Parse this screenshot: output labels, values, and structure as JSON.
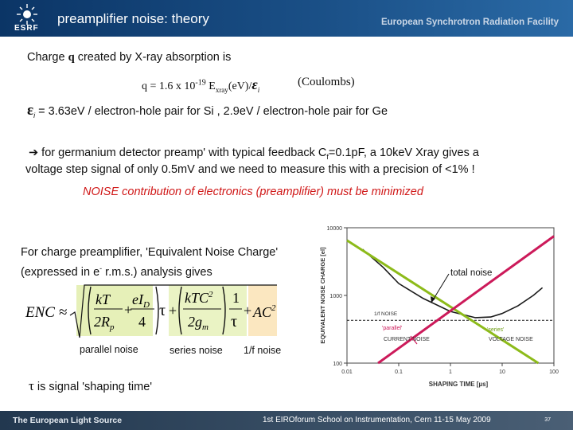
{
  "header": {
    "title": "preamplifier noise:  theory",
    "org": "European Synchrotron Radiation Facility",
    "logo_text": "ESRF"
  },
  "body": {
    "line1_pre": "Charge ",
    "line1_q": "q",
    "line1_post": " created by X-ray absorption is",
    "formula_a": "q = 1.6 x 10",
    "formula_exp": "-19",
    "formula_b": " E",
    "formula_sub": "xray",
    "formula_c": "(eV)/",
    "eps_symbol": "ε",
    "eps_sub": "i",
    "coulombs": "(Coulombs)",
    "epsline_rest": " = 3.63eV / electron-hole pair for Si ,  2.9eV / electron-hole pair for Ge",
    "para1_a": " for germanium detector preamp' with typical feedback C",
    "para1_sub": "f",
    "para1_b": "=0.1pF, a 10keV Xray gives a",
    "para2": "voltage step signal of only 0.5mV and we need to measure this with a precision of <1%  !",
    "noise_line": "NOISE contribution of electronics (preamplifier) must be minimized",
    "enc1": "For charge preamplifier, 'Equivalent Noise Charge'",
    "enc2_a": "(expressed in e",
    "enc2_sup": "-",
    "enc2_b": " r.m.s.) analysis gives",
    "lbl_parallel": "parallel noise",
    "lbl_series": "series noise",
    "lbl_1f": "1/f noise",
    "tau_symbol": "τ",
    "tau_text": " is signal 'shaping time'"
  },
  "equation": {
    "enc": "ENC ≈",
    "kT": "kT",
    "eID": "eI",
    "D": "D",
    "twoRp": "2R",
    "p": "p",
    "four": "4",
    "tau": "τ",
    "kTC": "kTC",
    "sq": "2",
    "twogm": "2g",
    "m": "m",
    "one": "1",
    "AC": "AC",
    "plus": "+"
  },
  "chart_data": {
    "type": "line",
    "xlabel": "SHAPING TIME [µs]",
    "ylabel": "EQUIVALENT NOISE CHARGE [el]",
    "xscale": "log",
    "yscale": "log",
    "xlim": [
      0.01,
      100
    ],
    "ylim": [
      100,
      10000
    ],
    "x_ticks": [
      "0.01",
      "0.1",
      "1",
      "10",
      "100"
    ],
    "y_ticks": [
      "10000",
      "1000",
      "100"
    ],
    "series": [
      {
        "name": "total noise",
        "color": "#1a1a1a",
        "x": [
          0.02,
          0.05,
          0.1,
          0.3,
          1,
          3,
          6,
          10,
          20,
          40,
          60
        ],
        "y": [
          4800,
          2600,
          1500,
          900,
          580,
          470,
          480,
          540,
          700,
          1000,
          1300
        ]
      },
      {
        "name": "1/f NOISE",
        "color": "#1a1a1a",
        "x": [
          0.01,
          100
        ],
        "y": [
          430,
          430
        ]
      },
      {
        "name": "CURRENT NOISE",
        "color": "#8dbb1a",
        "x": [
          0.01,
          50
        ],
        "y": [
          6500,
          100
        ]
      },
      {
        "name": "VOLTAGE NOISE",
        "color": "#cc1a5a",
        "x": [
          0.04,
          100
        ],
        "y": [
          100,
          7500
        ]
      }
    ],
    "annotations": {
      "total": "total noise",
      "f1": "1/f NOISE",
      "parallel": "'parallel'",
      "current": "CURRENT NOISE",
      "series": "'series'",
      "voltage": "VOLTAGE NOISE"
    }
  },
  "footer": {
    "left": "The European Light Source",
    "center": "1st EIROforum School on Instrumentation, Cern 11-15 May 2009",
    "page": "37"
  },
  "colors": {
    "header": "#1a4f86",
    "noise_red": "#d01818",
    "green": "#8dbb1a",
    "magenta": "#cc1a5a",
    "eq_highlight_1": "#e6f0b8",
    "eq_highlight_2": "#fbe7c0"
  }
}
